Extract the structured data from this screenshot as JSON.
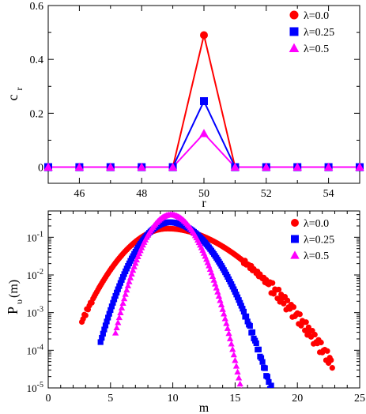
{
  "chart_data": [
    {
      "type": "line",
      "xlabel": "r",
      "ylabel": "c",
      "ylabel_sub": "r",
      "xlim": [
        45,
        55
      ],
      "ylim": [
        -0.06,
        0.6
      ],
      "xticks": [
        46,
        48,
        50,
        52,
        54
      ],
      "xtick_labels": [
        "46",
        "48",
        "50",
        "52",
        "54"
      ],
      "yticks": [
        0,
        0.2,
        0.4,
        0.6
      ],
      "ytick_labels": [
        "0",
        "0.2",
        "0.4",
        "0.6"
      ],
      "legend_position": "top-right",
      "x": [
        45,
        46,
        47,
        48,
        49,
        50,
        51,
        52,
        53,
        54,
        55
      ],
      "series": [
        {
          "name": "λ=0.0",
          "color": "#ff0000",
          "marker": "circle",
          "values": [
            0,
            0,
            0,
            0,
            0,
            0.49,
            0,
            0,
            0,
            0,
            0
          ]
        },
        {
          "name": "λ=0.25",
          "color": "#0000ff",
          "marker": "square",
          "values": [
            0,
            0,
            0,
            0,
            0,
            0.245,
            0,
            0,
            0,
            0,
            0
          ]
        },
        {
          "name": "λ=0.5",
          "color": "#ff00ff",
          "marker": "triangle",
          "values": [
            0,
            0,
            0,
            0,
            0,
            0.125,
            0,
            0,
            0,
            0,
            0
          ]
        }
      ]
    },
    {
      "type": "scatter",
      "xlabel": "m",
      "ylabel": "P",
      "ylabel_sub": "υ",
      "ylabel_suffix": "(m)",
      "yscale": "log",
      "xlim": [
        0,
        25
      ],
      "ylim": [
        1e-05,
        0.5
      ],
      "xticks": [
        0,
        5,
        10,
        15,
        20,
        25
      ],
      "xtick_labels": [
        "0",
        "5",
        "10",
        "15",
        "20",
        "25"
      ],
      "yticks_exponents": [
        -5,
        -4,
        -3,
        -2,
        -1
      ],
      "ytick_base": "10",
      "legend_position": "top-right",
      "series": [
        {
          "name": "λ=0.0",
          "color": "#ff0000",
          "marker": "circle",
          "peak_x": 9.6,
          "peak_y": 0.17,
          "x_range": [
            2.7,
            22.8
          ],
          "left_width": 2.05,
          "right_width": 2.6,
          "right_bulge": 0.18
        },
        {
          "name": "λ=0.25",
          "color": "#0000ff",
          "marker": "square",
          "peak_x": 9.75,
          "peak_y": 0.25,
          "x_range": [
            4.2,
            18.3
          ],
          "left_width": 1.45,
          "right_width": 1.8,
          "right_bulge": 0
        },
        {
          "name": "λ=0.5",
          "color": "#ff00ff",
          "marker": "triangle",
          "peak_x": 9.85,
          "peak_y": 0.4,
          "x_range": [
            5.4,
            15.6
          ],
          "left_width": 1.17,
          "right_width": 1.22,
          "right_bulge": 0
        }
      ]
    }
  ]
}
